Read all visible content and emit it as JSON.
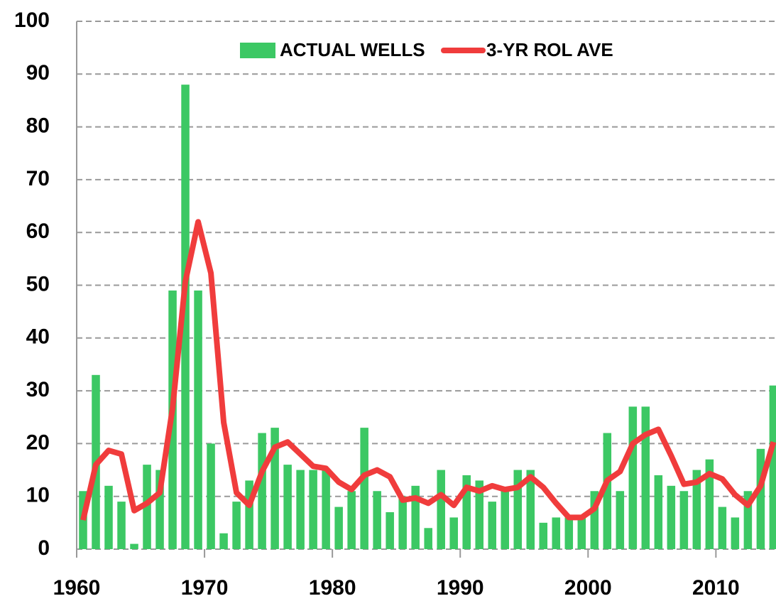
{
  "chart_data": {
    "type": "bar_line",
    "x": [
      1960,
      1961,
      1962,
      1963,
      1964,
      1965,
      1966,
      1967,
      1968,
      1969,
      1970,
      1971,
      1972,
      1973,
      1974,
      1975,
      1976,
      1977,
      1978,
      1979,
      1980,
      1981,
      1982,
      1983,
      1984,
      1985,
      1986,
      1987,
      1988,
      1989,
      1990,
      1991,
      1992,
      1993,
      1994,
      1995,
      1996,
      1997,
      1998,
      1999,
      2000,
      2001,
      2002,
      2003,
      2004,
      2005,
      2006,
      2007,
      2008,
      2009,
      2010,
      2011,
      2012,
      2013,
      2014
    ],
    "series": [
      {
        "name": "ACTUAL WELLS",
        "type": "bar",
        "color": "#3cc864",
        "values": [
          11,
          33,
          12,
          9,
          1,
          16,
          15,
          49,
          88,
          49,
          20,
          3,
          9,
          13,
          22,
          23,
          16,
          15,
          15,
          15,
          8,
          11,
          23,
          11,
          7,
          10,
          12,
          4,
          15,
          6,
          14,
          13,
          9,
          11,
          15,
          15,
          5,
          6,
          6,
          6,
          11,
          22,
          11,
          27,
          27,
          14,
          12,
          11,
          15,
          17,
          8,
          6,
          11,
          19,
          31
        ]
      },
      {
        "name": "3-YR ROL AVE",
        "type": "line",
        "color": "#f03c3c",
        "values": [
          5.5,
          16,
          18.7,
          18,
          7.3,
          8.7,
          10.7,
          26.7,
          50.7,
          62,
          52.3,
          24,
          10.7,
          8.3,
          14.7,
          19.3,
          20.3,
          18,
          15.7,
          15.3,
          12.7,
          11.3,
          14,
          15,
          13.7,
          9.3,
          9.7,
          8.7,
          10.3,
          8.3,
          11.7,
          11,
          12,
          11.3,
          11.7,
          13.7,
          11.7,
          8.7,
          6,
          6,
          7.7,
          13,
          14.7,
          20,
          21.7,
          22.7,
          17.7,
          12.3,
          12.7,
          14.3,
          13.3,
          10.3,
          8.3,
          12,
          20.3
        ]
      }
    ],
    "xlim": [
      1960,
      2014.7
    ],
    "xticks": [
      1960,
      1970,
      1980,
      1990,
      2000,
      2010
    ],
    "ylim": [
      0,
      100
    ],
    "yticks": [
      0,
      10,
      20,
      30,
      40,
      50,
      60,
      70,
      80,
      90,
      100
    ],
    "grid": true,
    "legend": "top"
  }
}
